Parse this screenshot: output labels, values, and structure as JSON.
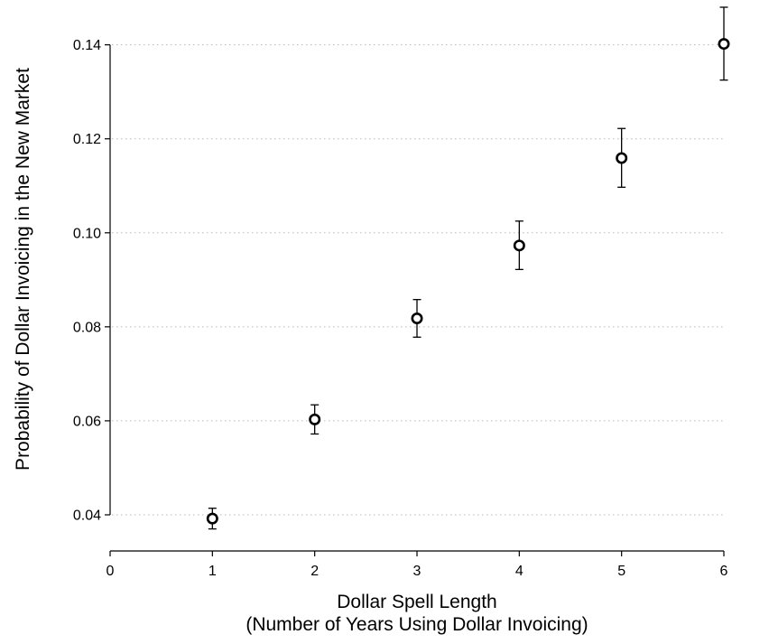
{
  "chart_data": {
    "type": "scatter",
    "xlabel": "Dollar Spell Length",
    "xlabel_line2": "(Number of Years Using Dollar Invoicing)",
    "ylabel": "Probability of Dollar Invoicing in the New Market",
    "xlim": [
      0,
      6
    ],
    "ylim": [
      0.035,
      0.148
    ],
    "x_ticks": [
      0,
      1,
      2,
      3,
      4,
      5,
      6
    ],
    "x_tick_labels": [
      "0",
      "1",
      "2",
      "3",
      "4",
      "5",
      "6"
    ],
    "y_ticks": [
      0.04,
      0.06,
      0.08,
      0.1,
      0.12,
      0.14
    ],
    "y_tick_labels": [
      "0.04",
      "0.06",
      "0.08",
      "0.10",
      "0.12",
      "0.14"
    ],
    "grid": "horizontal-dotted",
    "points": [
      {
        "x": 1,
        "y": 0.0392,
        "lo": 0.037,
        "hi": 0.0414
      },
      {
        "x": 2,
        "y": 0.0603,
        "lo": 0.0572,
        "hi": 0.0634
      },
      {
        "x": 3,
        "y": 0.0818,
        "lo": 0.0778,
        "hi": 0.0858
      },
      {
        "x": 4,
        "y": 0.0973,
        "lo": 0.0922,
        "hi": 0.1025
      },
      {
        "x": 5,
        "y": 0.1159,
        "lo": 0.1097,
        "hi": 0.1222
      },
      {
        "x": 6,
        "y": 0.1402,
        "lo": 0.1325,
        "hi": 0.148
      }
    ]
  }
}
